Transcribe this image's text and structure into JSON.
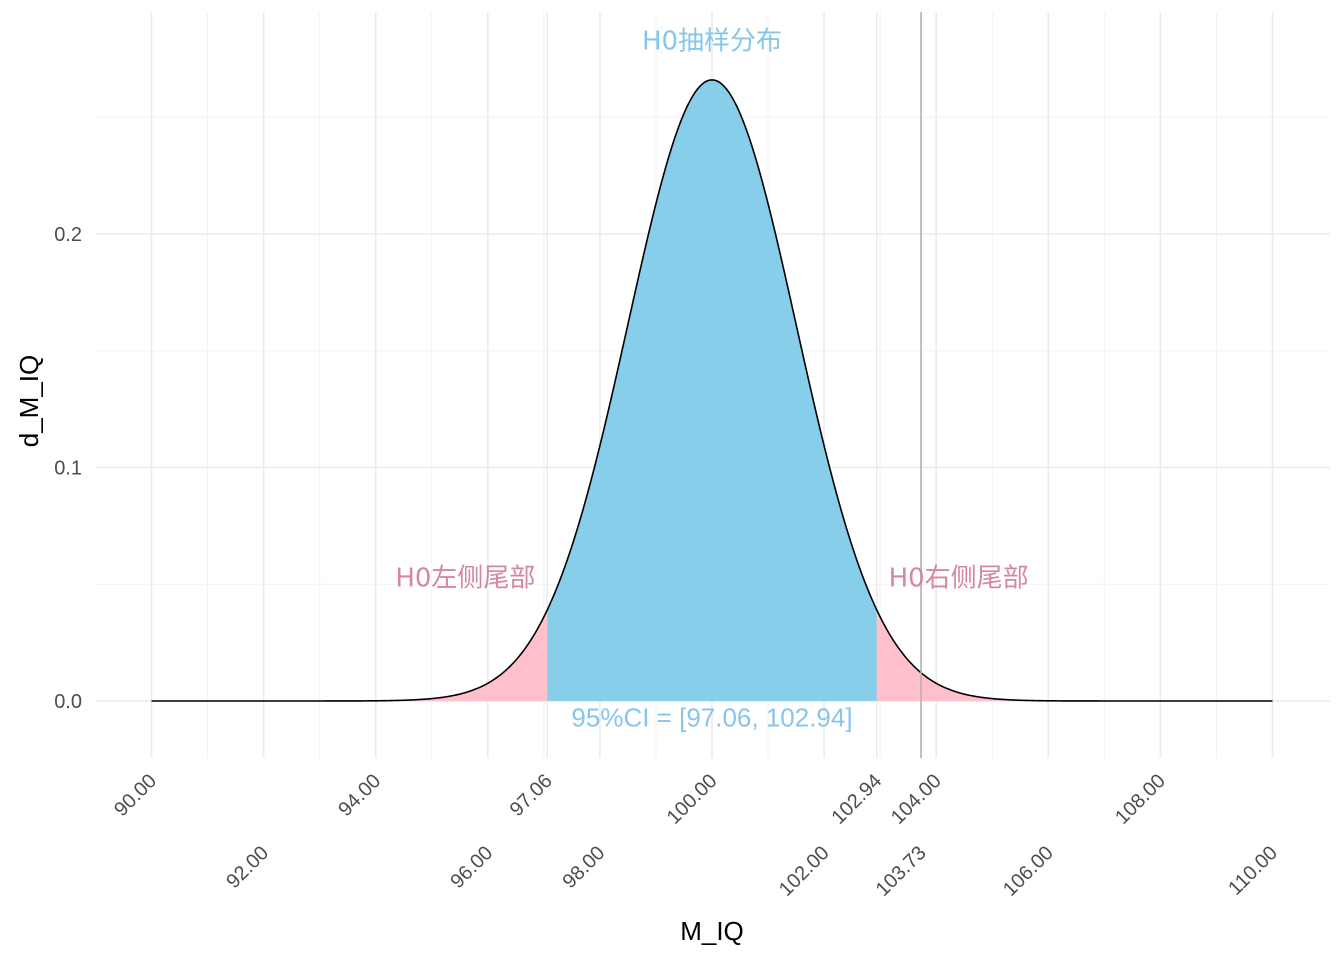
{
  "chart_data": {
    "type": "area",
    "title": "",
    "xlabel": "M_IQ",
    "ylabel": "d_M_IQ",
    "xlim": [
      90,
      110
    ],
    "ylim": [
      0,
      0.27
    ],
    "grid": true,
    "distribution": {
      "mean": 100,
      "sd": 1.5,
      "peak_density": 0.266
    },
    "y_ticks": [
      {
        "value": 0.0,
        "label": "0.0"
      },
      {
        "value": 0.1,
        "label": "0.1"
      },
      {
        "value": 0.2,
        "label": "0.2"
      }
    ],
    "x_ticks": [
      {
        "value": 90,
        "label": "90.00",
        "row": 0
      },
      {
        "value": 92,
        "label": "92.00",
        "row": 1
      },
      {
        "value": 94,
        "label": "94.00",
        "row": 0
      },
      {
        "value": 96,
        "label": "96.00",
        "row": 1
      },
      {
        "value": 97.06,
        "label": "97.06",
        "row": 0
      },
      {
        "value": 98,
        "label": "98.00",
        "row": 1
      },
      {
        "value": 100,
        "label": "100.00",
        "row": 0
      },
      {
        "value": 102,
        "label": "102.00",
        "row": 1
      },
      {
        "value": 102.94,
        "label": "102.94",
        "row": 0
      },
      {
        "value": 103.73,
        "label": "103.73",
        "row": 1
      },
      {
        "value": 104,
        "label": "104.00",
        "row": 0
      },
      {
        "value": 106,
        "label": "106.00",
        "row": 1
      },
      {
        "value": 108,
        "label": "108.00",
        "row": 0
      },
      {
        "value": 110,
        "label": "110.00",
        "row": 1
      }
    ],
    "regions": [
      {
        "name": "left-tail",
        "from": 90,
        "to": 97.06,
        "color": "#FFC0CB"
      },
      {
        "name": "middle",
        "from": 97.06,
        "to": 102.94,
        "color": "#87CEEB"
      },
      {
        "name": "right-tail",
        "from": 102.94,
        "to": 110,
        "color": "#FFC0CB"
      }
    ],
    "observed_line": {
      "x": 103.73,
      "color": "#b3b3b3"
    },
    "annotations": {
      "h0_distribution": {
        "text": "H0抽样分布",
        "x": 100,
        "y": 0.279,
        "color": "#87C6EB"
      },
      "left_tail": {
        "text": "H0左侧尾部",
        "x": 95.6,
        "y": 0.049,
        "color": "#D4879D"
      },
      "right_tail": {
        "text": "H0右侧尾部",
        "x": 104.4,
        "y": 0.049,
        "color": "#D4879D"
      },
      "ci": {
        "text": "95%CI = [97.06, 102.94]",
        "x": 100,
        "y": -0.011,
        "color": "#87C6EB"
      }
    }
  }
}
